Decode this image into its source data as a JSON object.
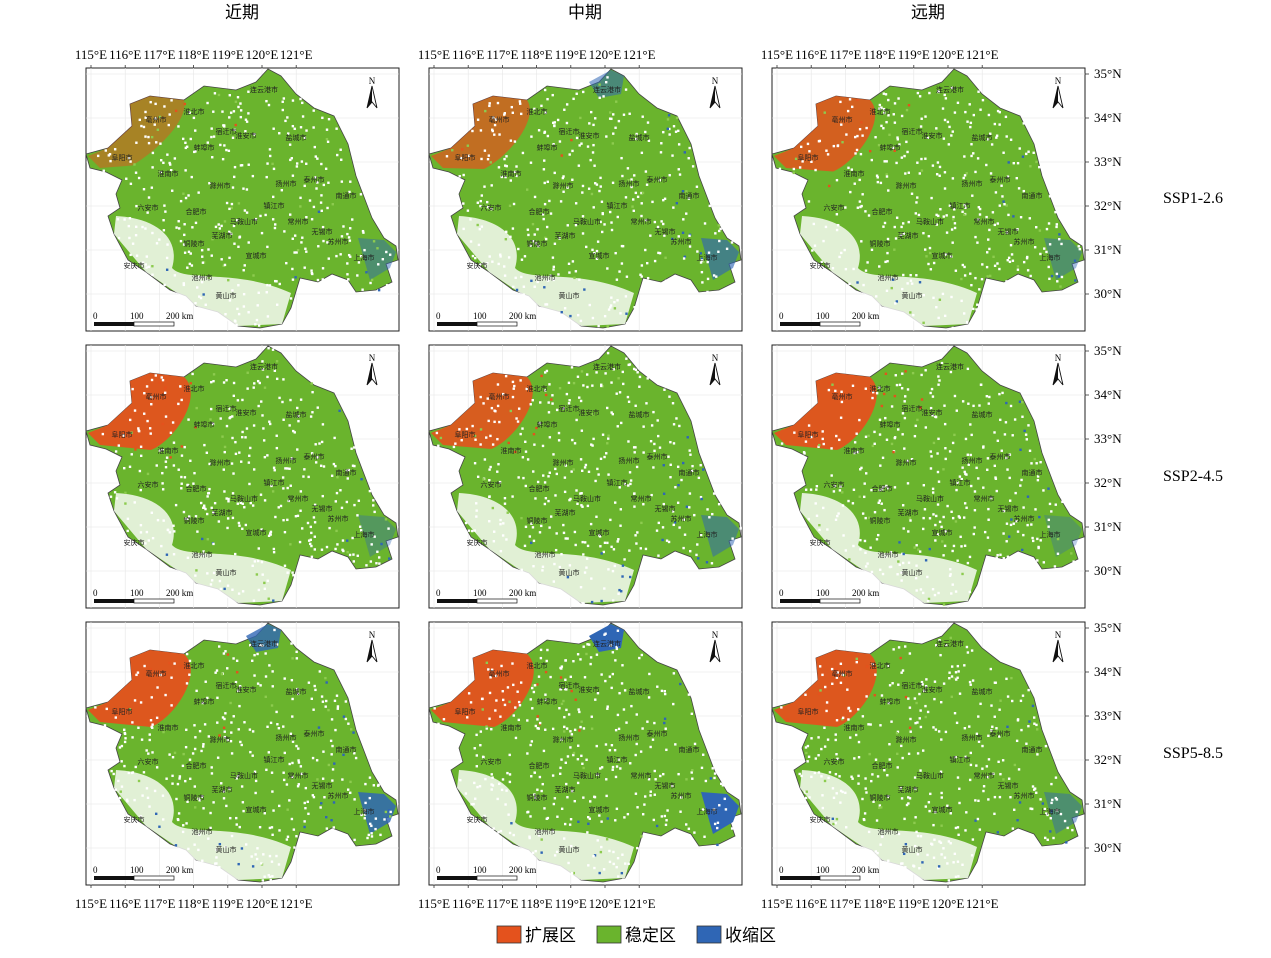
{
  "map": {
    "columns": [
      "近期",
      "中期",
      "远期"
    ],
    "rows": [
      "SSP1-2.6",
      "SSP2-4.5",
      "SSP5-8.5"
    ],
    "lon_ticks": [
      "115°E",
      "116°E",
      "117°E",
      "118°E",
      "119°E",
      "120°E",
      "121°E"
    ],
    "lat_ticks": [
      "35°N",
      "34°N",
      "33°N",
      "32°N",
      "31°N",
      "30°N"
    ],
    "north_label": "N",
    "scalebar": {
      "labels": [
        "0",
        "100",
        "200 km"
      ]
    },
    "cities": [
      "连云港市",
      "宿迁市",
      "淮北市",
      "亳州市",
      "蚌埠市",
      "阜阳市",
      "淮安市",
      "盐城市",
      "滁州市",
      "淮南市",
      "扬州市",
      "泰州市",
      "南通市",
      "六安市",
      "合肥市",
      "镇江市",
      "常州市",
      "无锡市",
      "苏州市",
      "上海市",
      "马鞍山市",
      "芜湖市",
      "铜陵市",
      "宣城市",
      "安庆市",
      "池州市",
      "黄山市"
    ],
    "colors": {
      "expand": "#e4521d",
      "stable": "#6ab42d",
      "shrink": "#2f66b5",
      "nodata": "#ffffff"
    },
    "panels": [
      {
        "row": 0,
        "col": 0,
        "expand": 0.25,
        "shrink": 0.35
      },
      {
        "row": 0,
        "col": 1,
        "expand": 0.6,
        "shrink": 0.55
      },
      {
        "row": 0,
        "col": 2,
        "expand": 0.85,
        "shrink": 0.3
      },
      {
        "row": 1,
        "col": 0,
        "expand": 1.0,
        "shrink": 0.2
      },
      {
        "row": 1,
        "col": 1,
        "expand": 0.9,
        "shrink": 0.4
      },
      {
        "row": 1,
        "col": 2,
        "expand": 1.0,
        "shrink": 0.15
      },
      {
        "row": 2,
        "col": 0,
        "expand": 1.0,
        "shrink": 0.8
      },
      {
        "row": 2,
        "col": 1,
        "expand": 1.0,
        "shrink": 1.0
      },
      {
        "row": 2,
        "col": 2,
        "expand": 1.0,
        "shrink": 0.35
      }
    ]
  },
  "legend": {
    "items": [
      {
        "label": "扩展区",
        "color": "#e4521d"
      },
      {
        "label": "稳定区",
        "color": "#6ab42d"
      },
      {
        "label": "收缩区",
        "color": "#2f66b5"
      }
    ]
  }
}
